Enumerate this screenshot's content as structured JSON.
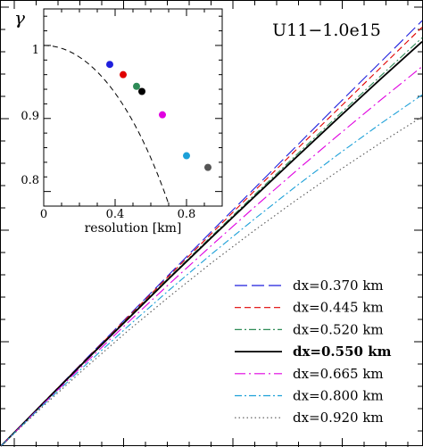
{
  "chart_data": [
    {
      "type": "line",
      "title": "U11−1.0e15",
      "xlabel": "",
      "ylabel": "",
      "grid": false,
      "legend_position": "bottom-right",
      "series": [
        {
          "name": "dx=0.370 km",
          "color": "#1f1fdd",
          "dash": "long-dash",
          "bold": false,
          "x": [
            0,
            0.1,
            0.2,
            0.3,
            0.4,
            0.5,
            0.6,
            0.7,
            0.8,
            0.9,
            1.0
          ],
          "y": [
            0,
            0.099,
            0.198,
            0.296,
            0.394,
            0.492,
            0.589,
            0.686,
            0.783,
            0.879,
            0.975
          ]
        },
        {
          "name": "dx=0.445 km",
          "color": "#e00000",
          "dash": "dash",
          "bold": false,
          "x": [
            0,
            0.1,
            0.2,
            0.3,
            0.4,
            0.5,
            0.6,
            0.7,
            0.8,
            0.9,
            1.0
          ],
          "y": [
            0,
            0.099,
            0.197,
            0.294,
            0.391,
            0.487,
            0.583,
            0.678,
            0.772,
            0.866,
            0.96
          ]
        },
        {
          "name": "dx=0.520 km",
          "color": "#2e8b57",
          "dash": "dash-dot",
          "bold": false,
          "x": [
            0,
            0.1,
            0.2,
            0.3,
            0.4,
            0.5,
            0.6,
            0.7,
            0.8,
            0.9,
            1.0
          ],
          "y": [
            0,
            0.099,
            0.196,
            0.292,
            0.387,
            0.481,
            0.574,
            0.666,
            0.757,
            0.847,
            0.936
          ]
        },
        {
          "name": "dx=0.550 km",
          "color": "#000000",
          "dash": "solid",
          "bold": true,
          "x": [
            0,
            0.1,
            0.2,
            0.3,
            0.4,
            0.5,
            0.6,
            0.7,
            0.8,
            0.9,
            1.0
          ],
          "y": [
            0,
            0.098,
            0.195,
            0.29,
            0.385,
            0.478,
            0.57,
            0.661,
            0.751,
            0.84,
            0.927
          ]
        },
        {
          "name": "dx=0.665 km",
          "color": "#e000e0",
          "dash": "long-dash-dot",
          "bold": false,
          "x": [
            0,
            0.1,
            0.2,
            0.3,
            0.4,
            0.5,
            0.6,
            0.7,
            0.8,
            0.9,
            1.0
          ],
          "y": [
            0,
            0.096,
            0.19,
            0.282,
            0.372,
            0.46,
            0.546,
            0.63,
            0.712,
            0.792,
            0.87
          ]
        },
        {
          "name": "dx=0.800 km",
          "color": "#1ca0d8",
          "dash": "dash-dot",
          "bold": false,
          "x": [
            0,
            0.1,
            0.2,
            0.3,
            0.4,
            0.5,
            0.6,
            0.7,
            0.8,
            0.9,
            1.0
          ],
          "y": [
            0,
            0.094,
            0.185,
            0.273,
            0.358,
            0.44,
            0.519,
            0.595,
            0.668,
            0.738,
            0.805
          ]
        },
        {
          "name": "dx=0.920 km",
          "color": "#555555",
          "dash": "dot",
          "bold": false,
          "x": [
            0,
            0.1,
            0.2,
            0.3,
            0.4,
            0.5,
            0.6,
            0.7,
            0.8,
            0.9,
            1.0
          ],
          "y": [
            0,
            0.091,
            0.179,
            0.263,
            0.343,
            0.42,
            0.493,
            0.563,
            0.63,
            0.694,
            0.755
          ]
        }
      ]
    },
    {
      "type": "scatter",
      "title": "",
      "ylabel": "γ",
      "xlabel": "resolution [km]",
      "xlim": [
        0,
        1.0
      ],
      "ylim": [
        0.78,
        1.05
      ],
      "x_ticks": [
        "0",
        "0.4",
        "0.8"
      ],
      "y_ticks": [
        "0.8",
        "0.9",
        "1"
      ],
      "grid": false,
      "points": [
        {
          "x": 0.37,
          "y": 0.974,
          "color": "#1f1fdd"
        },
        {
          "x": 0.445,
          "y": 0.96,
          "color": "#e00000"
        },
        {
          "x": 0.52,
          "y": 0.944,
          "color": "#2e8b57"
        },
        {
          "x": 0.55,
          "y": 0.937,
          "color": "#000000"
        },
        {
          "x": 0.665,
          "y": 0.905,
          "color": "#e000e0"
        },
        {
          "x": 0.8,
          "y": 0.849,
          "color": "#1ca0d8"
        },
        {
          "x": 0.92,
          "y": 0.833,
          "color": "#555555"
        }
      ],
      "fit_curve": {
        "style": "dashed",
        "x0": 1.125,
        "y_at_0": 1.0
      }
    }
  ]
}
